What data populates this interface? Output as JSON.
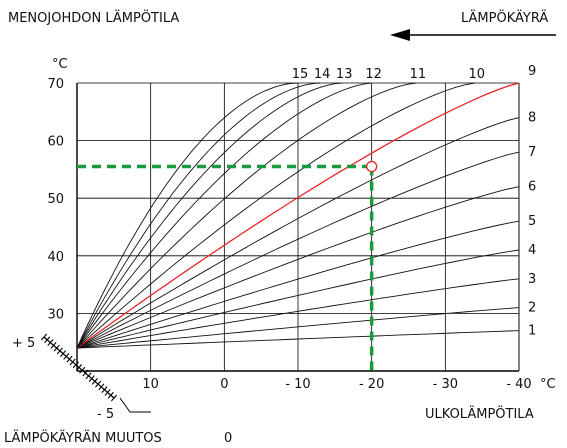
{
  "labels": {
    "flow_temperature": "MENOJOHDON LÄMPÖTILA",
    "heating_curve": "LÄMPÖKÄYRÄ",
    "outdoor_temperature": "ULKOLÄMPÖTILA",
    "curve_adjustment": "LÄMPÖKÄYRÄN MUUTOS",
    "adjustment_zero": "0",
    "adjustment_plus": "+ 5",
    "adjustment_minus": "- 5",
    "y_unit": "°C",
    "x_unit": "°C"
  },
  "colors": {
    "grid": "#000000",
    "curve": "#111111",
    "highlight_curve": "#e8262a",
    "marker_dash": "#1a9a3c"
  },
  "chart_data": {
    "type": "line",
    "x_axis": {
      "ticks": [
        10,
        0,
        -10,
        -20,
        -30,
        -40
      ],
      "tick_labels": [
        "10",
        "0",
        "- 10",
        "- 20",
        "- 30",
        "- 40"
      ],
      "range": [
        20,
        -40
      ],
      "label": "ULKOLÄMPÖTILA",
      "unit": "°C"
    },
    "y_axis": {
      "ticks": [
        30,
        40,
        50,
        60,
        70
      ],
      "tick_labels": [
        "30",
        "40",
        "50",
        "60",
        "70"
      ],
      "range": [
        20,
        70
      ],
      "label": "MENOJOHDON LÄMPÖTILA",
      "unit": "°C"
    },
    "curve_origin": {
      "x": 20,
      "y": 24
    },
    "curves_right_edge": [
      {
        "label": "1",
        "y_at_minus40": 27
      },
      {
        "label": "2",
        "y_at_minus40": 31
      },
      {
        "label": "3",
        "y_at_minus40": 36
      },
      {
        "label": "4",
        "y_at_minus40": 41
      },
      {
        "label": "5",
        "y_at_minus40": 46
      },
      {
        "label": "6",
        "y_at_minus40": 52
      },
      {
        "label": "7",
        "y_at_minus40": 58
      },
      {
        "label": "8",
        "y_at_minus40": 64
      },
      {
        "label": "9",
        "y_at_minus40": 70
      }
    ],
    "curves_top_edge": [
      {
        "label": "10",
        "x_at_70": -34
      },
      {
        "label": "11",
        "x_at_70": -26
      },
      {
        "label": "12",
        "x_at_70": -20
      },
      {
        "label": "13",
        "x_at_70": -16
      },
      {
        "label": "14",
        "x_at_70": -13
      },
      {
        "label": "15",
        "x_at_70": -10
      }
    ],
    "highlighted_curve": "9",
    "reference_point": {
      "x": -20,
      "y": 55.5
    },
    "grid": true
  }
}
